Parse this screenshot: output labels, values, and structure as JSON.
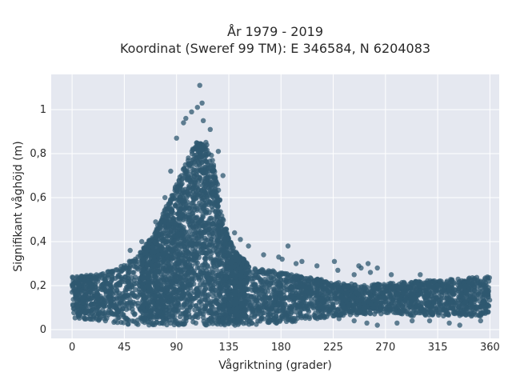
{
  "chart_data": {
    "type": "scatter",
    "title_line1": "År 1979 - 2019",
    "title_line2": "Koordinat (Sweref 99 TM): E 346584, N 6204083",
    "xlabel": "Vågriktning (grader)",
    "ylabel": "Signifikant våghöjd (m)",
    "xlim": [
      -18,
      368
    ],
    "ylim": [
      -0.04,
      1.16
    ],
    "x_ticks": [
      0,
      45,
      90,
      135,
      180,
      225,
      270,
      315,
      360
    ],
    "x_tick_labels": [
      "0",
      "45",
      "90",
      "135",
      "180",
      "225",
      "270",
      "315",
      "360"
    ],
    "y_ticks": [
      0,
      0.2,
      0.4,
      0.6,
      0.8,
      1.0
    ],
    "y_tick_labels": [
      "0",
      "0,2",
      "0,4",
      "0,6",
      "0,8",
      "1"
    ],
    "grid": true,
    "colors": {
      "plot_bg": "#e5e8f0",
      "grid": "#ffffff",
      "marker": "#2f5870"
    },
    "envelope": {
      "direction": [
        0,
        20,
        40,
        55,
        70,
        80,
        90,
        100,
        105,
        110,
        115,
        120,
        125,
        130,
        135,
        140,
        150,
        160,
        180,
        200,
        225,
        250,
        270,
        300,
        330,
        350,
        360
      ],
      "upper_height": [
        0.24,
        0.25,
        0.28,
        0.33,
        0.43,
        0.55,
        0.66,
        0.78,
        0.84,
        0.86,
        0.86,
        0.8,
        0.68,
        0.52,
        0.42,
        0.36,
        0.31,
        0.28,
        0.26,
        0.24,
        0.22,
        0.2,
        0.21,
        0.22,
        0.23,
        0.24,
        0.24
      ],
      "lower_height": [
        0.05,
        0.04,
        0.03,
        0.02,
        0.02,
        0.02,
        0.02,
        0.02,
        0.02,
        0.02,
        0.02,
        0.02,
        0.02,
        0.02,
        0.02,
        0.02,
        0.02,
        0.02,
        0.03,
        0.04,
        0.06,
        0.07,
        0.07,
        0.06,
        0.06,
        0.06,
        0.07
      ]
    },
    "outliers": [
      {
        "x": 110,
        "y": 1.11
      },
      {
        "x": 103,
        "y": 0.99
      },
      {
        "x": 108,
        "y": 1.01
      },
      {
        "x": 112,
        "y": 1.03
      },
      {
        "x": 98,
        "y": 0.96
      },
      {
        "x": 96,
        "y": 0.94
      },
      {
        "x": 113,
        "y": 0.95
      },
      {
        "x": 119,
        "y": 0.91
      },
      {
        "x": 90,
        "y": 0.87
      },
      {
        "x": 126,
        "y": 0.81
      },
      {
        "x": 130,
        "y": 0.7
      },
      {
        "x": 85,
        "y": 0.72
      },
      {
        "x": 80,
        "y": 0.6
      },
      {
        "x": 72,
        "y": 0.49
      },
      {
        "x": 60,
        "y": 0.4
      },
      {
        "x": 50,
        "y": 0.36
      },
      {
        "x": 140,
        "y": 0.44
      },
      {
        "x": 145,
        "y": 0.41
      },
      {
        "x": 152,
        "y": 0.38
      },
      {
        "x": 165,
        "y": 0.34
      },
      {
        "x": 178,
        "y": 0.33
      },
      {
        "x": 186,
        "y": 0.38
      },
      {
        "x": 181,
        "y": 0.32
      },
      {
        "x": 193,
        "y": 0.3
      },
      {
        "x": 198,
        "y": 0.31
      },
      {
        "x": 211,
        "y": 0.29
      },
      {
        "x": 226,
        "y": 0.31
      },
      {
        "x": 247,
        "y": 0.29
      },
      {
        "x": 249,
        "y": 0.28
      },
      {
        "x": 255,
        "y": 0.3
      },
      {
        "x": 257,
        "y": 0.26
      },
      {
        "x": 263,
        "y": 0.28
      },
      {
        "x": 229,
        "y": 0.27
      },
      {
        "x": 243,
        "y": 0.25
      },
      {
        "x": 275,
        "y": 0.25
      },
      {
        "x": 300,
        "y": 0.25
      }
    ],
    "outliers_low": [
      {
        "x": 254,
        "y": 0.03
      },
      {
        "x": 263,
        "y": 0.02
      },
      {
        "x": 280,
        "y": 0.03
      },
      {
        "x": 293,
        "y": 0.04
      },
      {
        "x": 308,
        "y": 0.04
      },
      {
        "x": 325,
        "y": 0.03
      },
      {
        "x": 334,
        "y": 0.02
      },
      {
        "x": 352,
        "y": 0.04
      },
      {
        "x": 230,
        "y": 0.05
      },
      {
        "x": 243,
        "y": 0.04
      }
    ]
  }
}
